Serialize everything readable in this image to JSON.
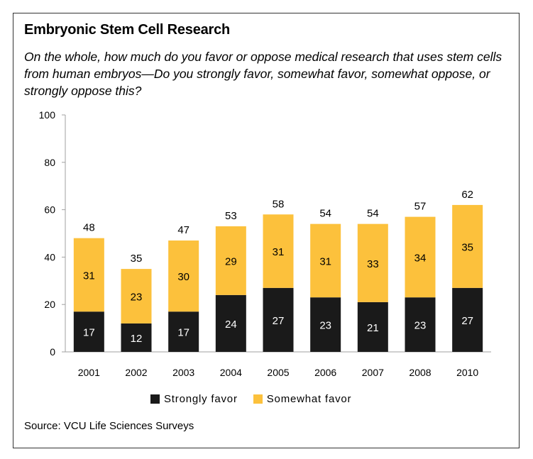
{
  "title": "Embryonic Stem Cell Research",
  "subtitle": "On the whole, how much do you favor or oppose medical research that uses stem cells from human embryos—Do you strongly favor, somewhat favor, somewhat oppose, or strongly oppose this?",
  "source": "Source: VCU Life Sciences Surveys",
  "colors": {
    "strongly": "#1a1a1a",
    "somewhat": "#fcc13c",
    "axis": "#a0a0a0"
  },
  "chart_data": {
    "type": "bar",
    "stacked": true,
    "title": "Embryonic Stem Cell Research",
    "xlabel": "",
    "ylabel": "",
    "ylim": [
      0,
      100
    ],
    "yticks": [
      0,
      20,
      40,
      60,
      80,
      100
    ],
    "categories": [
      "2001",
      "2002",
      "2003",
      "2004",
      "2005",
      "2006",
      "2007",
      "2008",
      "2010"
    ],
    "series": [
      {
        "name": "Strongly favor",
        "values": [
          17,
          12,
          17,
          24,
          27,
          23,
          21,
          23,
          27
        ]
      },
      {
        "name": "Somewhat favor",
        "values": [
          31,
          23,
          30,
          29,
          31,
          31,
          33,
          34,
          35
        ]
      }
    ],
    "totals": [
      48,
      35,
      47,
      53,
      58,
      54,
      54,
      57,
      62
    ],
    "legend": [
      "Strongly favor",
      "Somewhat favor"
    ],
    "legend_position": "bottom",
    "grid": false
  }
}
